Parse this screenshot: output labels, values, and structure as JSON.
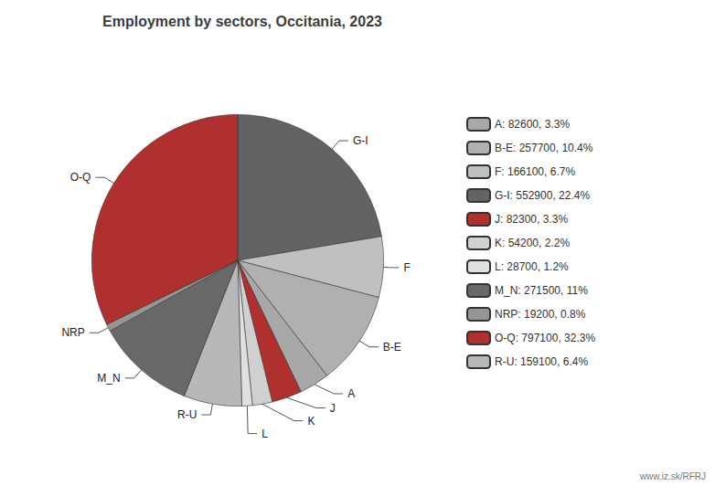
{
  "chart_data": {
    "type": "pie",
    "title": "Employment by sectors, Occitania, 2023",
    "categories": [
      "G-I",
      "F",
      "B-E",
      "A",
      "J",
      "K",
      "L",
      "R-U",
      "M_N",
      "NRP",
      "O-Q"
    ],
    "values": [
      552900,
      166100,
      257700,
      82600,
      82300,
      54200,
      28700,
      159100,
      271500,
      19200,
      797100
    ],
    "colors": [
      "#636363",
      "#c0c0c0",
      "#b0b0b0",
      "#a8a8a8",
      "#b03030",
      "#d0d0d0",
      "#e0e0e0",
      "#b8b8b8",
      "#686868",
      "#969696",
      "#b03030"
    ],
    "legend_labels": [
      "G-I: 552900, 22.4%",
      "F: 166100, 6.7%",
      "B-E: 257700, 10.4%",
      "A: 82600, 3.3%",
      "J: 82300, 3.3%",
      "K: 54200, 2.2%",
      "L: 28700, 1.2%",
      "R-U: 159100, 6.4%",
      "M_N: 271500, 11%",
      "NRP: 19200, 0.8%",
      "O-Q: 797100, 32.3%"
    ],
    "legend": "right",
    "annotations": [
      {
        "text": "www.iz.sk/RFRJ"
      }
    ]
  }
}
